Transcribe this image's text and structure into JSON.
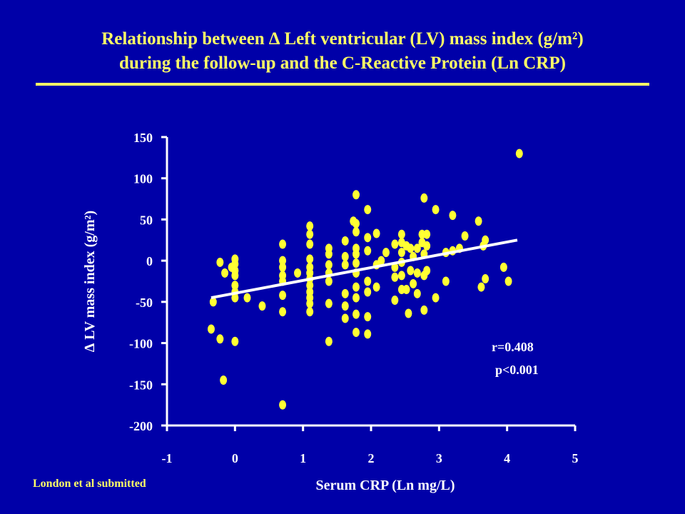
{
  "header": {
    "title_line1": "Relationship between ∆ Left ventricular (LV) mass index (g/m²)",
    "title_line2": "during the follow-up and the C-Reactive Protein (Ln CRP)"
  },
  "footer": {
    "source": "London et al submitted"
  },
  "colors": {
    "background": "#0000a8",
    "points": "#ffff33",
    "title": "#ffff66",
    "axes": "#ffffff"
  },
  "chart_data": {
    "type": "scatter",
    "title": "Relationship between ∆ Left ventricular (LV) mass index (g/m²) during the follow-up and the C-Reactive Protein (Ln CRP)",
    "xlabel": "Serum CRP (Ln mg/L)",
    "ylabel": "∆ LV mass index (g/m²)",
    "xlim": [
      -1,
      5
    ],
    "ylim": [
      -200,
      150
    ],
    "xticks": [
      -1,
      0,
      1,
      2,
      3,
      4,
      5
    ],
    "yticks": [
      -200,
      -150,
      -100,
      -50,
      0,
      50,
      100,
      150
    ],
    "grid": false,
    "annotations": [
      "r=0.408",
      "p<0.001"
    ],
    "regression_line": {
      "x": [
        -0.35,
        4.15
      ],
      "y": [
        -45,
        25
      ]
    },
    "points": [
      [
        -0.35,
        -83
      ],
      [
        -0.32,
        -50
      ],
      [
        -0.22,
        -2
      ],
      [
        -0.22,
        -95
      ],
      [
        -0.17,
        -145
      ],
      [
        -0.15,
        -15
      ],
      [
        -0.05,
        -8
      ],
      [
        0,
        2
      ],
      [
        0,
        -4
      ],
      [
        0,
        -12
      ],
      [
        0,
        -18
      ],
      [
        0,
        -30
      ],
      [
        0,
        -38
      ],
      [
        0,
        -45
      ],
      [
        0,
        -98
      ],
      [
        0.18,
        -45
      ],
      [
        0.4,
        -55
      ],
      [
        0.7,
        -175
      ],
      [
        0.7,
        -62
      ],
      [
        0.7,
        20
      ],
      [
        0.7,
        0
      ],
      [
        0.7,
        -8
      ],
      [
        0.7,
        -18
      ],
      [
        0.7,
        -25
      ],
      [
        0.7,
        -42
      ],
      [
        0.92,
        -15
      ],
      [
        1.1,
        42
      ],
      [
        1.1,
        32
      ],
      [
        1.1,
        20
      ],
      [
        1.1,
        2
      ],
      [
        1.1,
        -8
      ],
      [
        1.1,
        -15
      ],
      [
        1.1,
        -22
      ],
      [
        1.1,
        -30
      ],
      [
        1.1,
        -38
      ],
      [
        1.1,
        -45
      ],
      [
        1.1,
        -52
      ],
      [
        1.1,
        -62
      ],
      [
        1.38,
        15
      ],
      [
        1.38,
        8
      ],
      [
        1.38,
        -5
      ],
      [
        1.38,
        -15
      ],
      [
        1.38,
        -25
      ],
      [
        1.38,
        -52
      ],
      [
        1.38,
        -98
      ],
      [
        1.62,
        24
      ],
      [
        1.62,
        5
      ],
      [
        1.62,
        -5
      ],
      [
        1.62,
        -40
      ],
      [
        1.62,
        -55
      ],
      [
        1.62,
        -70
      ],
      [
        1.74,
        48
      ],
      [
        1.78,
        80
      ],
      [
        1.78,
        45
      ],
      [
        1.78,
        35
      ],
      [
        1.78,
        15
      ],
      [
        1.78,
        8
      ],
      [
        1.78,
        -3
      ],
      [
        1.78,
        -15
      ],
      [
        1.78,
        -32
      ],
      [
        1.78,
        -45
      ],
      [
        1.78,
        -65
      ],
      [
        1.78,
        -87
      ],
      [
        1.95,
        62
      ],
      [
        1.95,
        28
      ],
      [
        1.95,
        12
      ],
      [
        1.95,
        -25
      ],
      [
        1.95,
        -38
      ],
      [
        1.95,
        -68
      ],
      [
        1.95,
        -89
      ],
      [
        2.08,
        33
      ],
      [
        2.08,
        -5
      ],
      [
        2.08,
        -32
      ],
      [
        2.15,
        0
      ],
      [
        2.22,
        10
      ],
      [
        2.35,
        20
      ],
      [
        2.35,
        -8
      ],
      [
        2.35,
        -20
      ],
      [
        2.35,
        -48
      ],
      [
        2.45,
        32
      ],
      [
        2.45,
        22
      ],
      [
        2.45,
        10
      ],
      [
        2.45,
        -2
      ],
      [
        2.45,
        -18
      ],
      [
        2.45,
        -35
      ],
      [
        2.52,
        18
      ],
      [
        2.52,
        -35
      ],
      [
        2.55,
        -64
      ],
      [
        2.58,
        15
      ],
      [
        2.58,
        -12
      ],
      [
        2.62,
        5
      ],
      [
        2.62,
        -28
      ],
      [
        2.68,
        15
      ],
      [
        2.68,
        -15
      ],
      [
        2.68,
        -40
      ],
      [
        2.75,
        32
      ],
      [
        2.75,
        22
      ],
      [
        2.78,
        76
      ],
      [
        2.78,
        8
      ],
      [
        2.78,
        -18
      ],
      [
        2.78,
        -60
      ],
      [
        2.82,
        32
      ],
      [
        2.82,
        18
      ],
      [
        2.82,
        -12
      ],
      [
        2.95,
        62
      ],
      [
        2.95,
        -45
      ],
      [
        3.1,
        -25
      ],
      [
        3.1,
        10
      ],
      [
        3.2,
        55
      ],
      [
        3.2,
        12
      ],
      [
        3.3,
        15
      ],
      [
        3.38,
        30
      ],
      [
        3.58,
        48
      ],
      [
        3.62,
        -32
      ],
      [
        3.65,
        18
      ],
      [
        3.68,
        25
      ],
      [
        3.68,
        -22
      ],
      [
        3.95,
        -8
      ],
      [
        4.02,
        -25
      ],
      [
        4.18,
        130
      ]
    ]
  }
}
